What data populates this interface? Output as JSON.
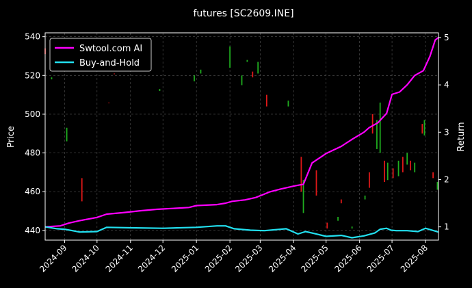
{
  "chart_data": {
    "type": "line",
    "title": "futures [SC2609.INE]",
    "ylabel": "Price",
    "y2label": "Return",
    "legend_position": "top-left",
    "grid": true,
    "x_range": [
      "2024-08-14",
      "2025-08-13"
    ],
    "ylim": [
      435,
      542
    ],
    "y2lim": [
      0.72,
      5.1
    ],
    "y_ticks": [
      440,
      460,
      480,
      500,
      520,
      540
    ],
    "y2_ticks": [
      1,
      2,
      3,
      4,
      5
    ],
    "x_ticks": [
      "2024-09-01",
      "2024-10-01",
      "2024-11-01",
      "2024-12-01",
      "2025-01-01",
      "2025-02-01",
      "2025-03-01",
      "2025-04-01",
      "2025-05-01",
      "2025-06-01",
      "2025-07-01",
      "2025-08-01"
    ],
    "x_tick_labels": [
      "2024-09",
      "2024-10",
      "2024-11",
      "2024-12",
      "2025-01",
      "2025-02",
      "2025-03",
      "2025-04",
      "2025-05",
      "2025-06",
      "2025-07",
      "2025-08"
    ],
    "colors": {
      "background": "#000000",
      "strategy": "#ff00ff",
      "buyhold": "#22e0f0",
      "up": "#1fae1f",
      "down": "#e01818",
      "grid": "#555555"
    },
    "series": [
      {
        "name": "Swtool.com AI",
        "color": "#ff00ff",
        "axis": "return",
        "x": [
          "2024-08-14",
          "2024-08-28",
          "2024-09-05",
          "2024-09-15",
          "2024-10-01",
          "2024-10-10",
          "2024-10-25",
          "2024-11-10",
          "2024-11-25",
          "2024-12-10",
          "2024-12-25",
          "2025-01-01",
          "2025-01-20",
          "2025-01-28",
          "2025-02-03",
          "2025-02-15",
          "2025-02-25",
          "2025-03-10",
          "2025-03-20",
          "2025-04-01",
          "2025-04-05",
          "2025-04-10",
          "2025-04-18",
          "2025-05-01",
          "2025-05-15",
          "2025-05-25",
          "2025-06-05",
          "2025-06-10",
          "2025-06-18",
          "2025-06-26",
          "2025-07-01",
          "2025-07-08",
          "2025-07-15",
          "2025-07-22",
          "2025-07-30",
          "2025-08-05",
          "2025-08-10",
          "2025-08-13"
        ],
        "y": [
          1.0,
          1.02,
          1.08,
          1.13,
          1.2,
          1.27,
          1.3,
          1.34,
          1.37,
          1.39,
          1.41,
          1.45,
          1.47,
          1.5,
          1.54,
          1.57,
          1.62,
          1.74,
          1.8,
          1.86,
          1.88,
          1.9,
          2.35,
          2.55,
          2.7,
          2.85,
          3.0,
          3.1,
          3.2,
          3.4,
          3.8,
          3.85,
          4.0,
          4.2,
          4.3,
          4.6,
          4.95,
          5.0
        ]
      },
      {
        "name": "Buy-and-Hold",
        "color": "#22e0f0",
        "axis": "return",
        "x": [
          "2024-08-14",
          "2024-08-25",
          "2024-09-01",
          "2024-09-15",
          "2024-10-01",
          "2024-10-10",
          "2024-11-01",
          "2024-12-01",
          "2025-01-01",
          "2025-01-20",
          "2025-01-28",
          "2025-02-05",
          "2025-02-20",
          "2025-03-05",
          "2025-03-25",
          "2025-04-05",
          "2025-04-12",
          "2025-04-20",
          "2025-05-01",
          "2025-05-15",
          "2025-05-25",
          "2025-06-05",
          "2025-06-15",
          "2025-06-20",
          "2025-06-26",
          "2025-06-30",
          "2025-07-05",
          "2025-07-15",
          "2025-07-25",
          "2025-08-01",
          "2025-08-13"
        ],
        "y": [
          1.0,
          0.96,
          0.95,
          0.89,
          0.9,
          0.99,
          0.98,
          0.97,
          0.99,
          1.02,
          1.02,
          0.96,
          0.93,
          0.92,
          0.96,
          0.85,
          0.9,
          0.86,
          0.8,
          0.82,
          0.77,
          0.81,
          0.87,
          0.95,
          0.97,
          0.93,
          0.92,
          0.92,
          0.9,
          0.97,
          0.89
        ]
      }
    ],
    "candles": [
      {
        "x": "2024-08-14",
        "open": 531,
        "close": 534,
        "up": false
      },
      {
        "x": "2024-08-20",
        "open": 519,
        "close": 518,
        "up": true
      },
      {
        "x": "2024-09-03",
        "open": 493,
        "close": 486,
        "up": true
      },
      {
        "x": "2024-09-17",
        "open": 467,
        "close": 455,
        "up": false
      },
      {
        "x": "2024-10-12",
        "open": 506,
        "close": 506,
        "up": false
      },
      {
        "x": "2024-10-17",
        "open": 521,
        "close": 521,
        "up": false
      },
      {
        "x": "2024-11-28",
        "open": 513,
        "close": 512,
        "up": true
      },
      {
        "x": "2024-12-30",
        "open": 520,
        "close": 517,
        "up": true
      },
      {
        "x": "2025-01-05",
        "open": 523,
        "close": 521,
        "up": true
      },
      {
        "x": "2025-02-01",
        "open": 535,
        "close": 524,
        "up": true
      },
      {
        "x": "2025-02-12",
        "open": 520,
        "close": 515,
        "up": true
      },
      {
        "x": "2025-02-17",
        "open": 528,
        "close": 527,
        "up": true
      },
      {
        "x": "2025-02-22",
        "open": 522,
        "close": 519,
        "up": false
      },
      {
        "x": "2025-02-27",
        "open": 527,
        "close": 521,
        "up": true
      },
      {
        "x": "2025-03-07",
        "open": 510,
        "close": 504,
        "up": false
      },
      {
        "x": "2025-03-27",
        "open": 507,
        "close": 504,
        "up": true
      },
      {
        "x": "2025-04-08",
        "open": 478,
        "close": 460,
        "up": false
      },
      {
        "x": "2025-04-10",
        "open": 466,
        "close": 449,
        "up": true
      },
      {
        "x": "2025-04-22",
        "open": 471,
        "close": 458,
        "up": false
      },
      {
        "x": "2025-05-02",
        "open": 444,
        "close": 441,
        "up": false
      },
      {
        "x": "2025-05-12",
        "open": 447,
        "close": 445,
        "up": true
      },
      {
        "x": "2025-05-15",
        "open": 456,
        "close": 454,
        "up": false
      },
      {
        "x": "2025-05-25",
        "open": 442,
        "close": 441,
        "up": true
      },
      {
        "x": "2025-06-06",
        "open": 458,
        "close": 456,
        "up": true
      },
      {
        "x": "2025-06-10",
        "open": 470,
        "close": 462,
        "up": false
      },
      {
        "x": "2025-06-13",
        "open": 500,
        "close": 490,
        "up": false
      },
      {
        "x": "2025-06-17",
        "open": 497,
        "close": 482,
        "up": true
      },
      {
        "x": "2025-06-20",
        "open": 506,
        "close": 480,
        "up": true
      },
      {
        "x": "2025-06-24",
        "open": 476,
        "close": 465,
        "up": false
      },
      {
        "x": "2025-06-27",
        "open": 475,
        "close": 466,
        "up": true
      },
      {
        "x": "2025-07-02",
        "open": 472,
        "close": 467,
        "up": false
      },
      {
        "x": "2025-07-07",
        "open": 476,
        "close": 468,
        "up": true
      },
      {
        "x": "2025-07-11",
        "open": 478,
        "close": 470,
        "up": false
      },
      {
        "x": "2025-07-15",
        "open": 480,
        "close": 474,
        "up": true
      },
      {
        "x": "2025-07-18",
        "open": 476,
        "close": 471,
        "up": false
      },
      {
        "x": "2025-07-22",
        "open": 475,
        "close": 470,
        "up": true
      },
      {
        "x": "2025-07-29",
        "open": 495,
        "close": 490,
        "up": false
      },
      {
        "x": "2025-07-31",
        "open": 497,
        "close": 489,
        "up": true
      },
      {
        "x": "2025-08-08",
        "open": 470,
        "close": 467,
        "up": false
      },
      {
        "x": "2025-08-12",
        "open": 465,
        "close": 461,
        "up": true
      }
    ]
  }
}
